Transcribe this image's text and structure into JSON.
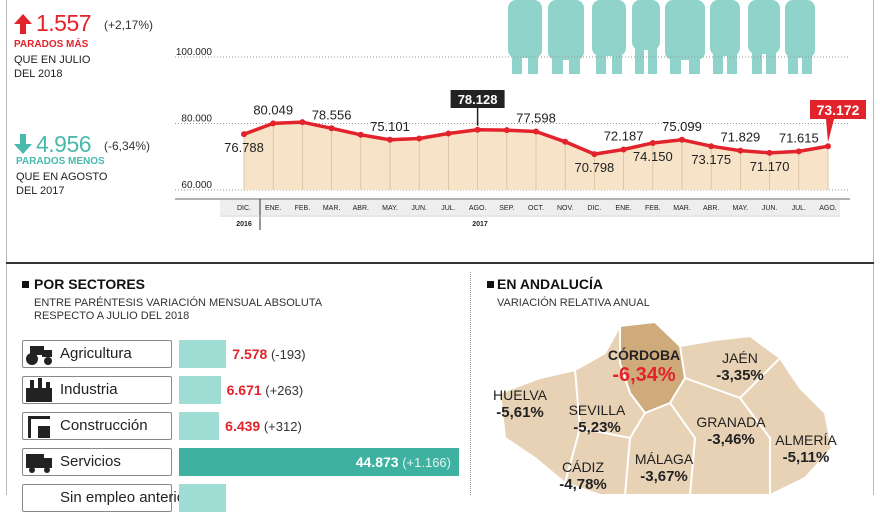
{
  "summary": {
    "up": {
      "value": "1.557",
      "pct": "(+2,17%)",
      "label": "PARADOS MÁS",
      "note1": "QUE EN JULIO",
      "note2": "DEL 2018"
    },
    "down": {
      "value": "4.956",
      "pct": "(-6,34%)",
      "label": "PARADOS MENOS",
      "note1": "QUE EN AGOSTO",
      "note2": "DEL 2017"
    }
  },
  "colors": {
    "red": "#e3232b",
    "teal": "#49b9ad",
    "area": "#f7e3c8",
    "bar_light": "#9fdcd4",
    "bar_dark": "#3fb1a1",
    "map": "#e8d2b5",
    "map_highlight": "#cfab7c"
  },
  "chart_data": {
    "type": "line",
    "ylim": [
      60000,
      100000
    ],
    "y_ticks": [
      "100.000",
      "80.000",
      "60.000"
    ],
    "y_tick_values": [
      100000,
      80000,
      60000
    ],
    "categories": [
      "DIC.",
      "ENE.",
      "FEB.",
      "MAR.",
      "ABR.",
      "MAY.",
      "JUN.",
      "JUL.",
      "AGO.",
      "SEP.",
      "OCT.",
      "NOV.",
      "DIC.",
      "ENE.",
      "FEB.",
      "MAR.",
      "ABR.",
      "MAY.",
      "JUN.",
      "JUL.",
      "AGO."
    ],
    "values": [
      76788,
      80049,
      80400,
      78556,
      76600,
      75101,
      75500,
      77000,
      78128,
      78000,
      77598,
      74500,
      70798,
      72187,
      74150,
      75099,
      73175,
      71829,
      71170,
      71615,
      73172
    ],
    "data_labels": [
      {
        "i": 0,
        "text": "76.788"
      },
      {
        "i": 1,
        "text": "80.049"
      },
      {
        "i": 3,
        "text": "78.556"
      },
      {
        "i": 5,
        "text": "75.101"
      },
      {
        "i": 8,
        "text": "78.128"
      },
      {
        "i": 10,
        "text": "77.598"
      },
      {
        "i": 12,
        "text": "70.798"
      },
      {
        "i": 13,
        "text": "72.187"
      },
      {
        "i": 14,
        "text": "74.150"
      },
      {
        "i": 15,
        "text": "75.099"
      },
      {
        "i": 16,
        "text": "73.175"
      },
      {
        "i": 17,
        "text": "71.829"
      },
      {
        "i": 18,
        "text": "71.170"
      },
      {
        "i": 19,
        "text": "71.615"
      },
      {
        "i": 20,
        "text": "73.172"
      }
    ],
    "year_labels": [
      "2016",
      "2017"
    ],
    "highlight_dark": 8,
    "highlight_red": 20
  },
  "sectores": {
    "title": "POR SECTORES",
    "subtitle1": "ENTRE PARÉNTESIS VARIACIÓN MENSUAL ABSOLUTA",
    "subtitle2": "RESPECTO A JULIO DEL 2018",
    "max": 44873,
    "rows": [
      {
        "name": "Agricultura",
        "value": 7578,
        "label": "7.578",
        "change": "(-193)",
        "icon": "tractor-icon"
      },
      {
        "name": "Industria",
        "value": 6671,
        "label": "6.671",
        "change": "(+263)",
        "icon": "factory-icon"
      },
      {
        "name": "Construcción",
        "value": 6439,
        "label": "6.439",
        "change": "(+312)",
        "icon": "construction-icon"
      },
      {
        "name": "Servicios",
        "value": 44873,
        "label": "44.873",
        "change": "(+1.166)",
        "icon": "truck-icon"
      },
      {
        "name": "Sin empleo anterior",
        "value": 7600,
        "label": "",
        "change": "",
        "icon": ""
      }
    ]
  },
  "andalucia": {
    "title": "EN ANDALUCÍA",
    "subtitle": "VARIACIÓN RELATIVA ANUAL",
    "provincias": [
      {
        "name": "CÓRDOBA",
        "value": "-6,34%"
      },
      {
        "name": "JAÉN",
        "value": "-3,35%"
      },
      {
        "name": "HUELVA",
        "value": "-5,61%"
      },
      {
        "name": "SEVILLA",
        "value": "-5,23%"
      },
      {
        "name": "GRANADA",
        "value": "-3,46%"
      },
      {
        "name": "ALMERÍA",
        "value": "-5,11%"
      },
      {
        "name": "CÁDIZ",
        "value": "-4,78%"
      },
      {
        "name": "MÁLAGA",
        "value": "-3,67%"
      }
    ]
  }
}
